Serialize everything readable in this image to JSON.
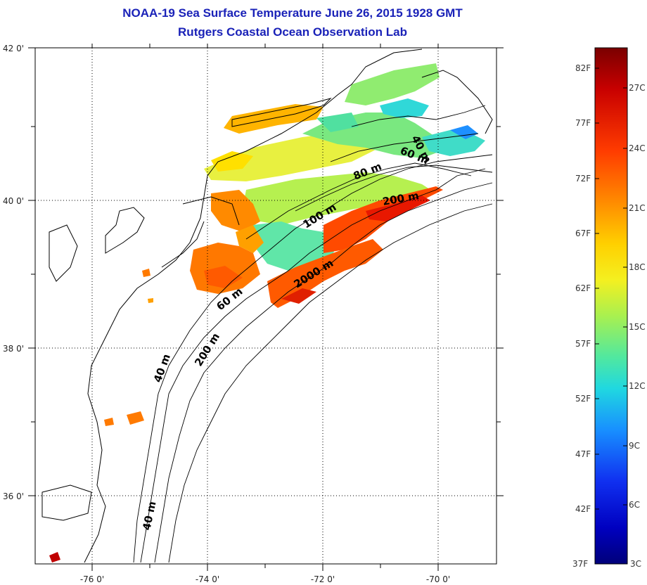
{
  "header": {
    "title_line1": "NOAA-19 Sea Surface Temperature June 26, 2015 1928 GMT",
    "title_line2": "Rutgers Coastal Ocean Observation Lab"
  },
  "map": {
    "lat_range": [
      35,
      42
    ],
    "lon_range": [
      -77,
      -69
    ],
    "lat_ticks": [
      {
        "value": 42,
        "label": "42 0'"
      },
      {
        "value": 40,
        "label": "40 0'"
      },
      {
        "value": 38,
        "label": "38 0'"
      },
      {
        "value": 36,
        "label": "36 0'"
      }
    ],
    "lon_ticks": [
      {
        "value": -76,
        "label": "-76 0'"
      },
      {
        "value": -74,
        "label": "-74 0'"
      },
      {
        "value": -72,
        "label": "-72 0'"
      },
      {
        "value": -70,
        "label": "-70 0'"
      }
    ],
    "gridlines": "dotted",
    "contour_labels": [
      {
        "text": "40 m"
      },
      {
        "text": "60 m"
      },
      {
        "text": "80 m"
      },
      {
        "text": "100 m"
      },
      {
        "text": "200 m"
      },
      {
        "text": "2000 m"
      },
      {
        "text": "60 m"
      },
      {
        "text": "200 m"
      },
      {
        "text": "40 m"
      },
      {
        "text": "40 m"
      }
    ]
  },
  "colorbar": {
    "fahrenheit_labels": [
      "82F",
      "77F",
      "72F",
      "67F",
      "62F",
      "57F",
      "52F",
      "47F",
      "42F",
      "37F"
    ],
    "celsius_labels": [
      "27C",
      "24C",
      "21C",
      "18C",
      "15C",
      "12C",
      "9C",
      "6C",
      "3C"
    ],
    "colors": [
      "#7a0000",
      "#d40000",
      "#ff4a00",
      "#ff9a00",
      "#ffe000",
      "#b8f040",
      "#5ce890",
      "#28d8d0",
      "#1890ff",
      "#1030f0",
      "#0000b0",
      "#00007a"
    ]
  }
}
